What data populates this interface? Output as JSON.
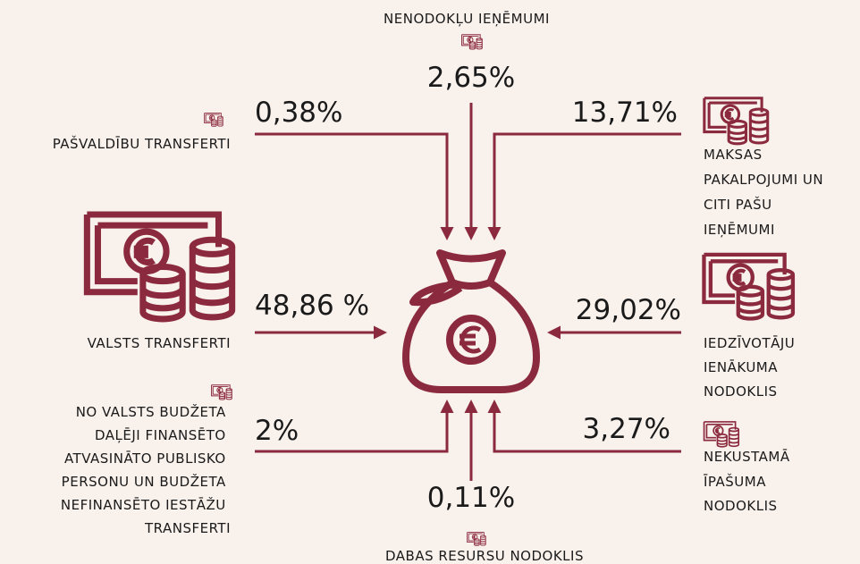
{
  "items": [
    {
      "label": [
        "NENODOKĻU IEŅĒMUMI"
      ],
      "value": "2,65%"
    },
    {
      "label": [
        "PAŠVALDĪBU TRANSFERTI"
      ],
      "value": "0,38%"
    },
    {
      "label": [
        "MAKSAS",
        "PAKALPOJUMI UN",
        "CITI PAŠU",
        "IEŅĒMUMI"
      ],
      "value": "13,71%"
    },
    {
      "label": [
        "VALSTS TRANSFERTI"
      ],
      "value": "48,86 %"
    },
    {
      "label": [
        "IEDZĪVOTĀJU",
        "IENĀKUMA",
        "NODOKLIS"
      ],
      "value": "29,02%"
    },
    {
      "label": [
        "NO VALSTS BUDŽETA",
        "DAĻĒJI FINANSĒTO",
        "ATVASINĀTO PUBLISKO",
        "PERSONU UN BUDŽETA",
        "NEFINANSĒTO IESTĀŽU",
        "TRANSFERTI"
      ],
      "value": "2%"
    },
    {
      "label": [
        "NEKUSTAMĀ",
        "ĪPAŠUMA",
        "NODOKLIS"
      ],
      "value": "3,27%"
    },
    {
      "label": [
        "DABAS RESURSU NODOKLIS"
      ],
      "value": "0,11%"
    }
  ]
}
